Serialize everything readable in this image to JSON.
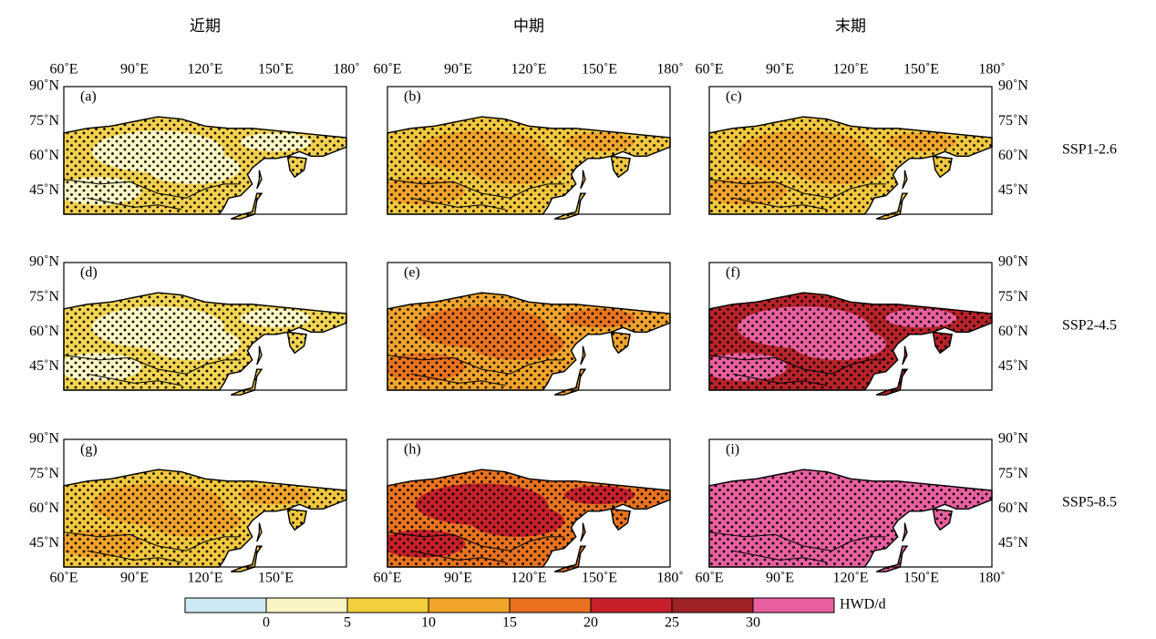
{
  "column_titles": [
    "近期",
    "中期",
    "末期"
  ],
  "row_labels": [
    "SSP1-2.6",
    "SSP2-4.5",
    "SSP5-8.5"
  ],
  "lon_labels": [
    "60˚E",
    "90˚E",
    "120˚E",
    "150˚E",
    "180˚"
  ],
  "lat_labels": [
    "90˚N",
    "75˚N",
    "60˚N",
    "45˚N"
  ],
  "panels": [
    {
      "label": "(a)",
      "color": "#f2d04e",
      "color2": "#fbf4c4"
    },
    {
      "label": "(b)",
      "color": "#f1c73e",
      "color2": "#f0a32c"
    },
    {
      "label": "(c)",
      "color": "#f1c73e",
      "color2": "#f0a32c"
    },
    {
      "label": "(d)",
      "color": "#f2d452",
      "color2": "#fbf4c4"
    },
    {
      "label": "(e)",
      "color": "#f0a32c",
      "color2": "#e8731f"
    },
    {
      "label": "(f)",
      "color": "#b8232a",
      "color2": "#e8609f"
    },
    {
      "label": "(g)",
      "color": "#f1c73e",
      "color2": "#f0a32c"
    },
    {
      "label": "(h)",
      "color": "#e8731f",
      "color2": "#c6202a"
    },
    {
      "label": "(i)",
      "color": "#e8609f",
      "color2": "#e8609f"
    }
  ],
  "colorbar": {
    "colors": [
      "#cde8f2",
      "#faf3c2",
      "#f2cf3c",
      "#f0a528",
      "#e8701e",
      "#c8202a",
      "#9e2226",
      "#e8609f"
    ],
    "ticks": [
      0,
      5,
      10,
      15,
      20,
      25,
      30
    ],
    "label": "HWD/d"
  }
}
